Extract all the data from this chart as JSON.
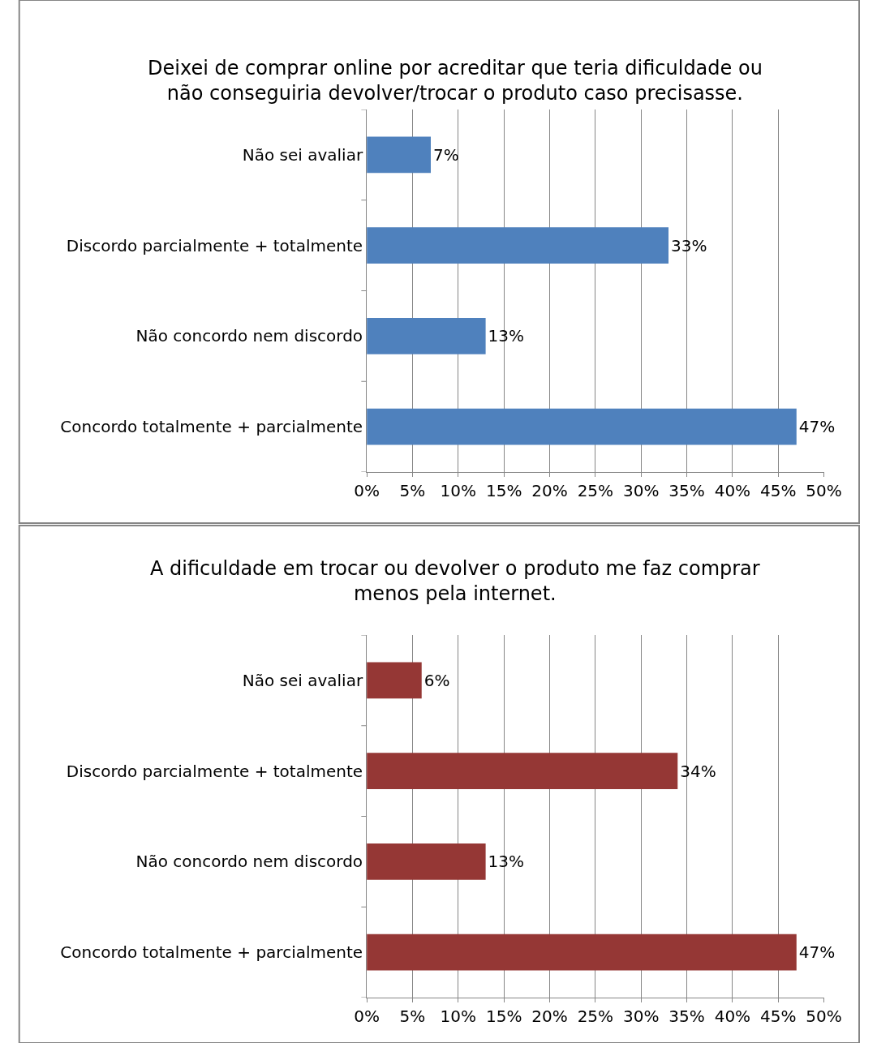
{
  "chart_data": [
    {
      "type": "bar",
      "orientation": "horizontal",
      "title": "Deixei de comprar online por acreditar que teria dificuldade ou\nnão conseguiria devolver/trocar o produto caso precisasse.",
      "categories": [
        "Não sei avaliar",
        "Discordo parcialmente + totalmente",
        "Não concordo nem discordo",
        "Concordo totalmente + parcialmente"
      ],
      "values": [
        7,
        33,
        13,
        47
      ],
      "value_labels": [
        "7%",
        "33%",
        "13%",
        "47%"
      ],
      "color": "#4f81bd",
      "xlim": [
        0,
        50
      ],
      "xticks": [
        {
          "value": 0,
          "label": "0%"
        },
        {
          "value": 5,
          "label": "5%"
        },
        {
          "value": 10,
          "label": "10%"
        },
        {
          "value": 15,
          "label": "15%"
        },
        {
          "value": 20,
          "label": "20%"
        },
        {
          "value": 25,
          "label": "25%"
        },
        {
          "value": 30,
          "label": "30%"
        },
        {
          "value": 35,
          "label": "35%"
        },
        {
          "value": 40,
          "label": "40%"
        },
        {
          "value": 45,
          "label": "45%"
        },
        {
          "value": 50,
          "label": "50%"
        }
      ],
      "grid": "x",
      "legend": false
    },
    {
      "type": "bar",
      "orientation": "horizontal",
      "title": "A dificuldade em trocar ou devolver o produto me faz comprar\nmenos pela internet.",
      "categories": [
        "Não sei avaliar",
        "Discordo parcialmente + totalmente",
        "Não concordo nem discordo",
        "Concordo totalmente + parcialmente"
      ],
      "values": [
        6,
        34,
        13,
        47
      ],
      "value_labels": [
        "6%",
        "34%",
        "13%",
        "47%"
      ],
      "color": "#953735",
      "xlim": [
        0,
        50
      ],
      "xticks": [
        {
          "value": 0,
          "label": "0%"
        },
        {
          "value": 5,
          "label": "5%"
        },
        {
          "value": 10,
          "label": "10%"
        },
        {
          "value": 15,
          "label": "15%"
        },
        {
          "value": 20,
          "label": "20%"
        },
        {
          "value": 25,
          "label": "25%"
        },
        {
          "value": 30,
          "label": "30%"
        },
        {
          "value": 35,
          "label": "35%"
        },
        {
          "value": 40,
          "label": "40%"
        },
        {
          "value": 45,
          "label": "45%"
        },
        {
          "value": 50,
          "label": "50%"
        }
      ],
      "grid": "x",
      "legend": false
    }
  ]
}
